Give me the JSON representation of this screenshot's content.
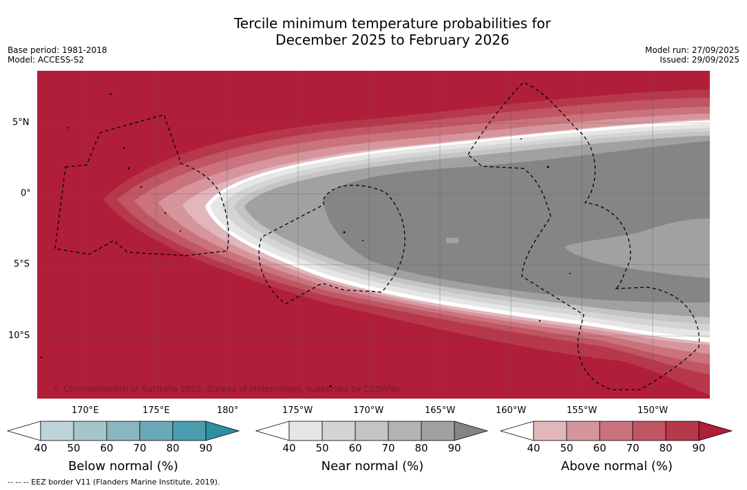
{
  "title_line1": "Tercile minimum temperature probabilities for",
  "title_line2": "December 2025 to February 2026",
  "base_period": "Base period: 1981-2018",
  "model": "Model: ACCESS-S2",
  "model_run": "Model run: 27/09/2025",
  "issued": "Issued: 29/09/2025",
  "copyright": "© Commonwealth of Australia 2025, Bureau of Meteorology, supported by COSPPac",
  "lat_labels": [
    "5°N",
    "0°",
    "5°S",
    "10°S"
  ],
  "lon_labels": [
    "170°E",
    "175°E",
    "180°",
    "175°W",
    "170°W",
    "165°W",
    "160°W",
    "155°W",
    "150°W"
  ],
  "colorbars": [
    {
      "title": "Below normal (%)",
      "ticks": [
        "40",
        "50",
        "60",
        "70",
        "80",
        "90"
      ],
      "colors": [
        "#bfd3d8",
        "#a6c5cb",
        "#8ab6bf",
        "#6aa9b7",
        "#4b9dad",
        "#2e8fa0"
      ]
    },
    {
      "title": "Near normal (%)",
      "ticks": [
        "40",
        "50",
        "60",
        "70",
        "80",
        "90"
      ],
      "colors": [
        "#e6e6e6",
        "#d4d4d4",
        "#c4c4c4",
        "#b3b3b3",
        "#a1a1a1",
        "#858585"
      ]
    },
    {
      "title": "Above normal (%)",
      "ticks": [
        "40",
        "50",
        "60",
        "70",
        "80",
        "90"
      ],
      "colors": [
        "#e2b7bc",
        "#d6959c",
        "#ca737d",
        "#c05564",
        "#b7384b",
        "#b01e3a"
      ]
    }
  ],
  "footnote": "-- -- -- EEZ border V11 (Flanders Marine Institute, 2019)."
}
